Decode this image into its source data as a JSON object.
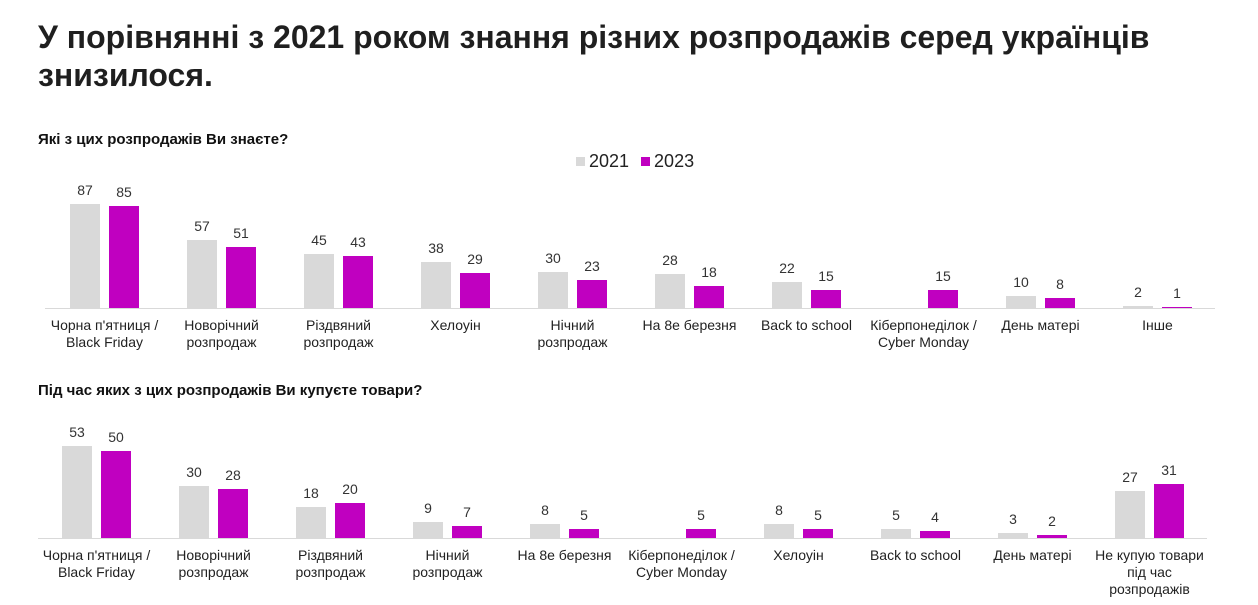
{
  "title": "У порівнянні з 2021 роком знання різних розпродажів серед українців знизилося.",
  "chart_data": [
    {
      "type": "bar",
      "title": "Які з цих розпродажів Ви знаєте?",
      "categories": [
        "Чорна п'ятниця /\nBlack Friday",
        "Новорічний\nрозпродаж",
        "Різдвяний\nрозпродаж",
        "Хелоуін",
        "Нічний\nрозпродаж",
        "На 8е березня",
        "Back to school",
        "Кіберпонеділок /\nCyber Monday",
        "День матері",
        "Інше"
      ],
      "series": [
        {
          "name": "2021",
          "color": "#d9d9d9",
          "values": [
            87,
            57,
            45,
            38,
            30,
            28,
            22,
            null,
            10,
            2
          ]
        },
        {
          "name": "2023",
          "color": "#c000c0",
          "values": [
            85,
            51,
            43,
            29,
            23,
            18,
            15,
            15,
            8,
            1
          ]
        }
      ],
      "ylim": [
        0,
        100
      ]
    },
    {
      "type": "bar",
      "title": "Під час яких з цих розпродажів Ви купуєте товари?",
      "categories": [
        "Чорна п'ятниця /\nBlack Friday",
        "Новорічний\nрозпродаж",
        "Різдвяний\nрозпродаж",
        "Нічний\nрозпродаж",
        "На 8е березня",
        "Кіберпонеділок /\nCyber Monday",
        "Хелоуін",
        "Back to school",
        "День матері",
        "Не купую товари\nпід час\nрозпродажів"
      ],
      "series": [
        {
          "name": "2021",
          "color": "#d9d9d9",
          "values": [
            53,
            30,
            18,
            9,
            8,
            null,
            8,
            5,
            3,
            27
          ]
        },
        {
          "name": "2023",
          "color": "#c000c0",
          "values": [
            50,
            28,
            20,
            7,
            5,
            5,
            5,
            4,
            2,
            31
          ]
        }
      ],
      "ylim": [
        0,
        60
      ]
    }
  ]
}
